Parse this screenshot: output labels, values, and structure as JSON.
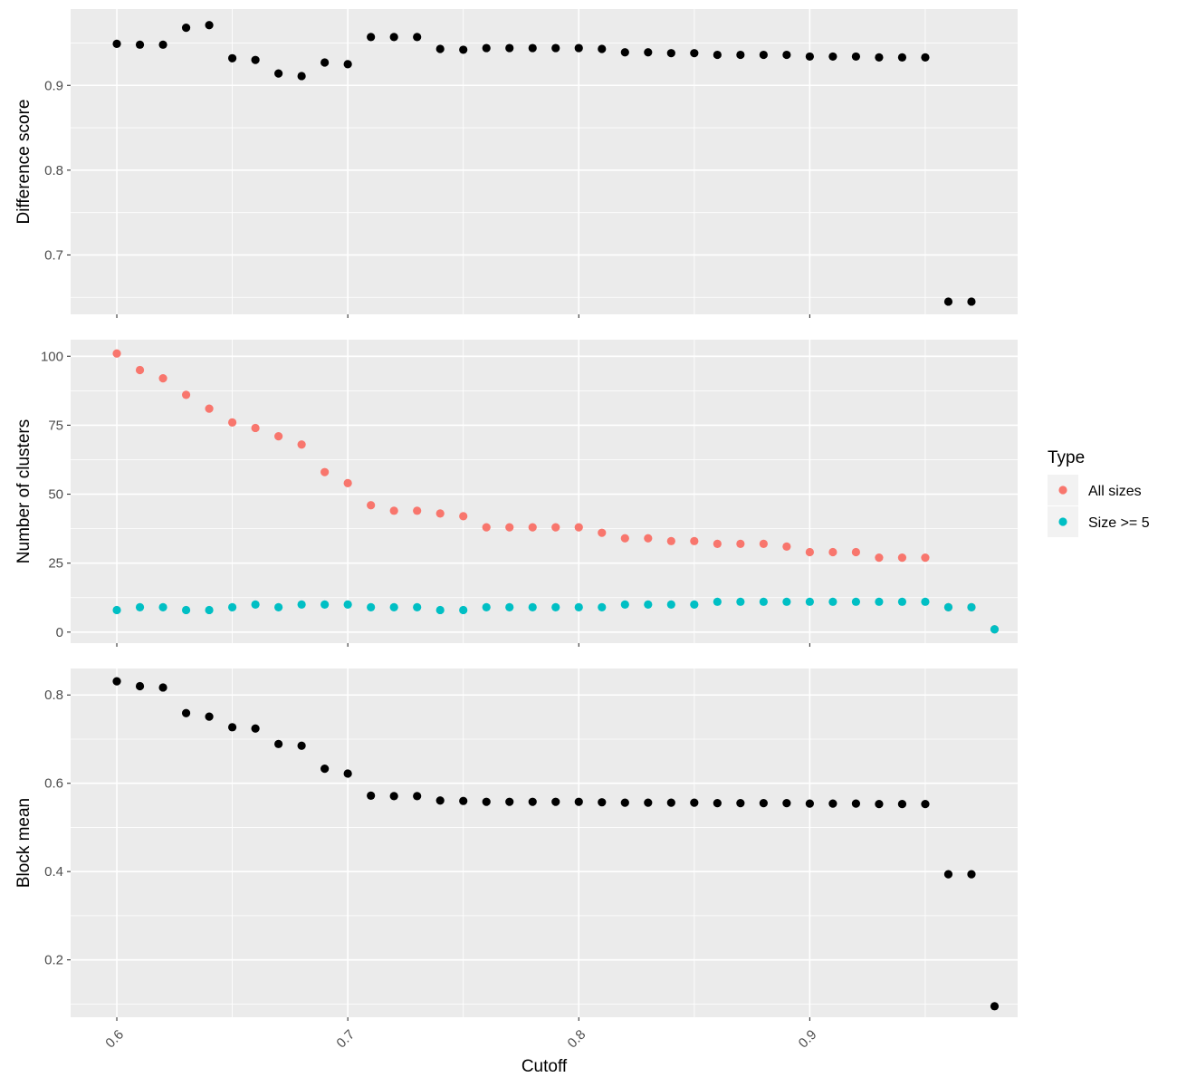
{
  "chart_data": [
    {
      "type": "scatter",
      "ylabel": "Difference score",
      "ylim": [
        0.63,
        0.99
      ],
      "yticks": [
        0.7,
        0.8,
        0.9
      ],
      "xlim": [
        0.58,
        0.99
      ],
      "xticks": [
        0.6,
        0.7,
        0.8,
        0.9
      ],
      "grid": true,
      "series": [
        {
          "color": "#000000",
          "points": [
            [
              0.6,
              0.949
            ],
            [
              0.61,
              0.948
            ],
            [
              0.62,
              0.948
            ],
            [
              0.63,
              0.968
            ],
            [
              0.64,
              0.971
            ],
            [
              0.65,
              0.932
            ],
            [
              0.66,
              0.93
            ],
            [
              0.67,
              0.914
            ],
            [
              0.68,
              0.911
            ],
            [
              0.69,
              0.927
            ],
            [
              0.7,
              0.925
            ],
            [
              0.71,
              0.957
            ],
            [
              0.72,
              0.957
            ],
            [
              0.73,
              0.957
            ],
            [
              0.74,
              0.943
            ],
            [
              0.75,
              0.942
            ],
            [
              0.76,
              0.944
            ],
            [
              0.77,
              0.944
            ],
            [
              0.78,
              0.944
            ],
            [
              0.79,
              0.944
            ],
            [
              0.8,
              0.944
            ],
            [
              0.81,
              0.943
            ],
            [
              0.82,
              0.939
            ],
            [
              0.83,
              0.939
            ],
            [
              0.84,
              0.938
            ],
            [
              0.85,
              0.938
            ],
            [
              0.86,
              0.936
            ],
            [
              0.87,
              0.936
            ],
            [
              0.88,
              0.936
            ],
            [
              0.89,
              0.936
            ],
            [
              0.9,
              0.934
            ],
            [
              0.91,
              0.934
            ],
            [
              0.92,
              0.934
            ],
            [
              0.93,
              0.933
            ],
            [
              0.94,
              0.933
            ],
            [
              0.95,
              0.933
            ],
            [
              0.96,
              0.645
            ],
            [
              0.97,
              0.645
            ]
          ]
        }
      ]
    },
    {
      "type": "scatter",
      "ylabel": "Number of clusters",
      "ylim": [
        -4,
        106
      ],
      "yticks": [
        0,
        25,
        50,
        75,
        100
      ],
      "xlim": [
        0.58,
        0.99
      ],
      "xticks": [
        0.6,
        0.7,
        0.8,
        0.9
      ],
      "grid": true,
      "legend": {
        "title": "Type",
        "position": "right"
      },
      "series": [
        {
          "name": "All sizes",
          "color": "#F8766D",
          "points": [
            [
              0.6,
              101
            ],
            [
              0.61,
              95
            ],
            [
              0.62,
              92
            ],
            [
              0.63,
              86
            ],
            [
              0.64,
              81
            ],
            [
              0.65,
              76
            ],
            [
              0.66,
              74
            ],
            [
              0.67,
              71
            ],
            [
              0.68,
              68
            ],
            [
              0.69,
              58
            ],
            [
              0.7,
              54
            ],
            [
              0.71,
              46
            ],
            [
              0.72,
              44
            ],
            [
              0.73,
              44
            ],
            [
              0.74,
              43
            ],
            [
              0.75,
              42
            ],
            [
              0.76,
              38
            ],
            [
              0.77,
              38
            ],
            [
              0.78,
              38
            ],
            [
              0.79,
              38
            ],
            [
              0.8,
              38
            ],
            [
              0.81,
              36
            ],
            [
              0.82,
              34
            ],
            [
              0.83,
              34
            ],
            [
              0.84,
              33
            ],
            [
              0.85,
              33
            ],
            [
              0.86,
              32
            ],
            [
              0.87,
              32
            ],
            [
              0.88,
              32
            ],
            [
              0.89,
              31
            ],
            [
              0.9,
              29
            ],
            [
              0.91,
              29
            ],
            [
              0.92,
              29
            ],
            [
              0.93,
              27
            ],
            [
              0.94,
              27
            ],
            [
              0.95,
              27
            ],
            [
              0.96,
              9
            ],
            [
              0.97,
              9
            ],
            [
              0.98,
              1
            ]
          ]
        },
        {
          "name": "Size >= 5",
          "color": "#00BFC4",
          "points": [
            [
              0.6,
              8
            ],
            [
              0.61,
              9
            ],
            [
              0.62,
              9
            ],
            [
              0.63,
              8
            ],
            [
              0.64,
              8
            ],
            [
              0.65,
              9
            ],
            [
              0.66,
              10
            ],
            [
              0.67,
              9
            ],
            [
              0.68,
              10
            ],
            [
              0.69,
              10
            ],
            [
              0.7,
              10
            ],
            [
              0.71,
              9
            ],
            [
              0.72,
              9
            ],
            [
              0.73,
              9
            ],
            [
              0.74,
              8
            ],
            [
              0.75,
              8
            ],
            [
              0.76,
              9
            ],
            [
              0.77,
              9
            ],
            [
              0.78,
              9
            ],
            [
              0.79,
              9
            ],
            [
              0.8,
              9
            ],
            [
              0.81,
              9
            ],
            [
              0.82,
              10
            ],
            [
              0.83,
              10
            ],
            [
              0.84,
              10
            ],
            [
              0.85,
              10
            ],
            [
              0.86,
              11
            ],
            [
              0.87,
              11
            ],
            [
              0.88,
              11
            ],
            [
              0.89,
              11
            ],
            [
              0.9,
              11
            ],
            [
              0.91,
              11
            ],
            [
              0.92,
              11
            ],
            [
              0.93,
              11
            ],
            [
              0.94,
              11
            ],
            [
              0.95,
              11
            ],
            [
              0.96,
              9
            ],
            [
              0.97,
              9
            ],
            [
              0.98,
              1
            ]
          ]
        }
      ]
    },
    {
      "type": "scatter",
      "ylabel": "Block mean",
      "xlabel": "Cutoff",
      "ylim": [
        0.07,
        0.86
      ],
      "yticks": [
        0.2,
        0.4,
        0.6,
        0.8
      ],
      "xlim": [
        0.58,
        0.99
      ],
      "xticks": [
        0.6,
        0.7,
        0.8,
        0.9
      ],
      "xtick_labels_rotated": true,
      "grid": true,
      "series": [
        {
          "color": "#000000",
          "points": [
            [
              0.6,
              0.831
            ],
            [
              0.61,
              0.82
            ],
            [
              0.62,
              0.817
            ],
            [
              0.63,
              0.759
            ],
            [
              0.64,
              0.751
            ],
            [
              0.65,
              0.727
            ],
            [
              0.66,
              0.724
            ],
            [
              0.67,
              0.689
            ],
            [
              0.68,
              0.685
            ],
            [
              0.69,
              0.633
            ],
            [
              0.7,
              0.622
            ],
            [
              0.71,
              0.572
            ],
            [
              0.72,
              0.571
            ],
            [
              0.73,
              0.571
            ],
            [
              0.74,
              0.561
            ],
            [
              0.75,
              0.56
            ],
            [
              0.76,
              0.558
            ],
            [
              0.77,
              0.558
            ],
            [
              0.78,
              0.558
            ],
            [
              0.79,
              0.558
            ],
            [
              0.8,
              0.558
            ],
            [
              0.81,
              0.557
            ],
            [
              0.82,
              0.556
            ],
            [
              0.83,
              0.556
            ],
            [
              0.84,
              0.556
            ],
            [
              0.85,
              0.556
            ],
            [
              0.86,
              0.555
            ],
            [
              0.87,
              0.555
            ],
            [
              0.88,
              0.555
            ],
            [
              0.89,
              0.555
            ],
            [
              0.9,
              0.554
            ],
            [
              0.91,
              0.554
            ],
            [
              0.92,
              0.554
            ],
            [
              0.93,
              0.553
            ],
            [
              0.94,
              0.553
            ],
            [
              0.95,
              0.553
            ],
            [
              0.96,
              0.394
            ],
            [
              0.97,
              0.394
            ],
            [
              0.98,
              0.095
            ]
          ]
        }
      ]
    }
  ]
}
